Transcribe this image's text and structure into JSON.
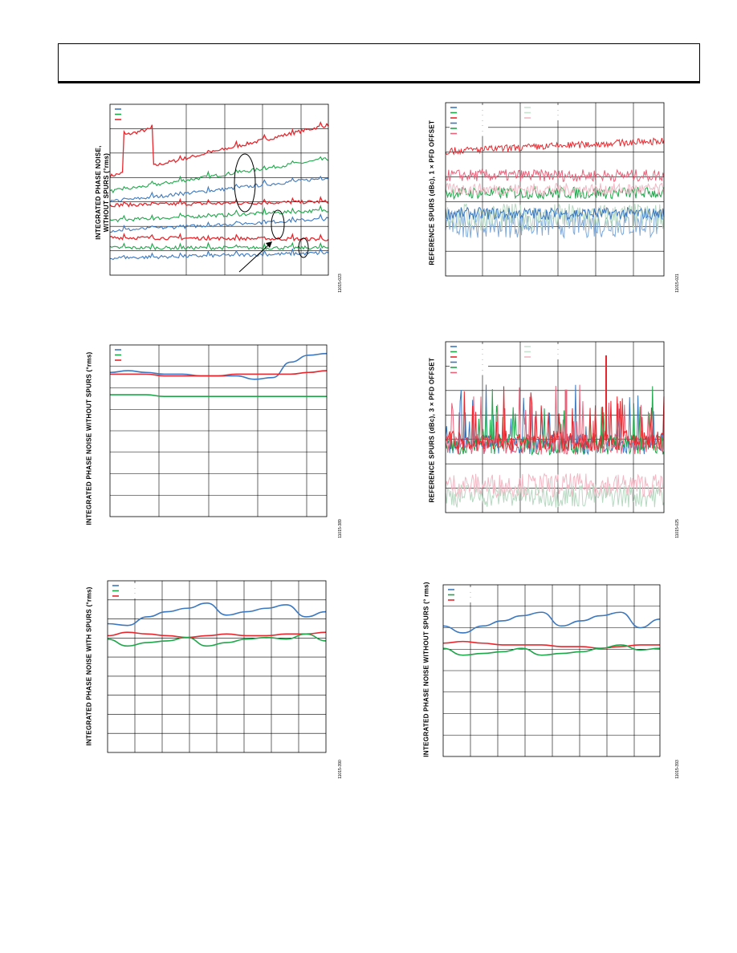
{
  "page": {
    "header_text": ""
  },
  "figures": [
    {
      "id": "fig-tl",
      "ylabel_lines": [
        "INTEGRATED PHASE NOISE,",
        "WITHOUT SPURS (°rms)"
      ],
      "figure_code": "11015-023",
      "legend_colors": [
        "#3b78c0",
        "#1fa64a",
        "#e8262c"
      ]
    },
    {
      "id": "fig-tr",
      "ylabel_lines": [
        "REFERENCE SPURS (dBc), 1 × PFD OFFSET"
      ],
      "figure_code": "11015-021",
      "legend_colors": [
        "#3b78c0",
        "#1fa64a",
        "#e8262c",
        "#3b78c0",
        "#1fa64a",
        "#e8627a",
        "#c9e1d0",
        "#c9e1d0",
        "#f2b8c4"
      ]
    },
    {
      "id": "fig-ml",
      "ylabel_lines": [
        "INTEGRATED PHASE NOISE WITHOUT SPURS (°rms)"
      ],
      "figure_code": "11015-389",
      "legend_colors": [
        "#3b78c0",
        "#1fa64a",
        "#e8262c"
      ]
    },
    {
      "id": "fig-mr",
      "ylabel_lines": [
        "REFERENCE SPURS (dBc), 3 × PFD OFFSET"
      ],
      "figure_code": "11015-025",
      "legend_colors": [
        "#3b78c0",
        "#1fa64a",
        "#e8262c",
        "#3b78c0",
        "#1fa64a",
        "#e8627a",
        "#c9e1d0",
        "#c9e1d0",
        "#f2b8c4"
      ]
    },
    {
      "id": "fig-bl",
      "ylabel_lines": [
        "INTEGRATED PHASE NOISE WITH SPURS (°rms)"
      ],
      "figure_code": "11015-390",
      "legend_colors": [
        "#3b78c0",
        "#1fa64a",
        "#e8262c"
      ]
    },
    {
      "id": "fig-br",
      "ylabel_lines": [
        "INTEGRATED PHASE NOISE WITHOUT SPURS (° rms)"
      ],
      "figure_code": "11015-393",
      "legend_colors": [
        "#3b78c0",
        "#1fa64a",
        "#e8262c"
      ]
    }
  ],
  "chart_data": [
    {
      "type": "line",
      "series_colors": [
        "#e8262c",
        "#1fa64a",
        "#3b78c0",
        "#e8262c",
        "#1fa64a",
        "#3b78c0",
        "#e8262c",
        "#1fa64a",
        "#3b78c0"
      ],
      "levels_start": [
        0.58,
        0.49,
        0.43,
        0.41,
        0.32,
        0.26,
        0.22,
        0.16,
        0.1
      ],
      "levels_end": [
        0.88,
        0.68,
        0.57,
        0.43,
        0.38,
        0.33,
        0.21,
        0.16,
        0.13
      ]
    },
    {
      "type": "line",
      "series_colors": [
        "#7fa9d8",
        "#b7d8c1",
        "#3b78c0",
        "#1fa64a",
        "#f2b8c4",
        "#e8627a",
        "#e8262c"
      ],
      "levels": [
        0.3,
        0.34,
        0.36,
        0.48,
        0.5,
        0.58,
        0.72
      ]
    },
    {
      "type": "line",
      "series": [
        {
          "color": "#3b78c0",
          "values": [
            0.84,
            0.85,
            0.84,
            0.83,
            0.83,
            0.82,
            0.82,
            0.82,
            0.8,
            0.81,
            0.9,
            0.94,
            0.95
          ]
        },
        {
          "color": "#e8262c",
          "values": [
            0.83,
            0.83,
            0.83,
            0.82,
            0.82,
            0.82,
            0.82,
            0.83,
            0.83,
            0.83,
            0.83,
            0.84,
            0.85
          ]
        },
        {
          "color": "#1fa64a",
          "values": [
            0.71,
            0.71,
            0.71,
            0.7,
            0.7,
            0.7,
            0.7,
            0.7,
            0.7,
            0.7,
            0.7,
            0.7,
            0.7
          ]
        }
      ]
    },
    {
      "type": "line",
      "series_colors": [
        "#b7d8c1",
        "#f2b8c4",
        "#3b78c0",
        "#1fa64a",
        "#e8627a",
        "#e8262c"
      ],
      "levels": [
        0.1,
        0.16,
        0.4,
        0.4,
        0.4,
        0.42
      ]
    },
    {
      "type": "line",
      "series": [
        {
          "color": "#3b78c0",
          "values": [
            0.75,
            0.74,
            0.79,
            0.82,
            0.84,
            0.87,
            0.8,
            0.82,
            0.84,
            0.86,
            0.79,
            0.82
          ]
        },
        {
          "color": "#e8262c",
          "values": [
            0.68,
            0.7,
            0.69,
            0.68,
            0.67,
            0.68,
            0.69,
            0.68,
            0.68,
            0.69,
            0.69,
            0.7
          ]
        },
        {
          "color": "#1fa64a",
          "values": [
            0.66,
            0.62,
            0.64,
            0.65,
            0.67,
            0.62,
            0.64,
            0.66,
            0.67,
            0.66,
            0.69,
            0.65
          ]
        }
      ]
    },
    {
      "type": "line",
      "series": [
        {
          "color": "#3b78c0",
          "values": [
            0.76,
            0.72,
            0.76,
            0.79,
            0.82,
            0.84,
            0.76,
            0.79,
            0.82,
            0.84,
            0.75,
            0.8
          ]
        },
        {
          "color": "#e8262c",
          "values": [
            0.66,
            0.67,
            0.66,
            0.65,
            0.65,
            0.65,
            0.64,
            0.64,
            0.63,
            0.64,
            0.65,
            0.65
          ]
        },
        {
          "color": "#1fa64a",
          "values": [
            0.63,
            0.59,
            0.6,
            0.61,
            0.63,
            0.59,
            0.6,
            0.61,
            0.63,
            0.65,
            0.62,
            0.63
          ]
        }
      ]
    }
  ]
}
